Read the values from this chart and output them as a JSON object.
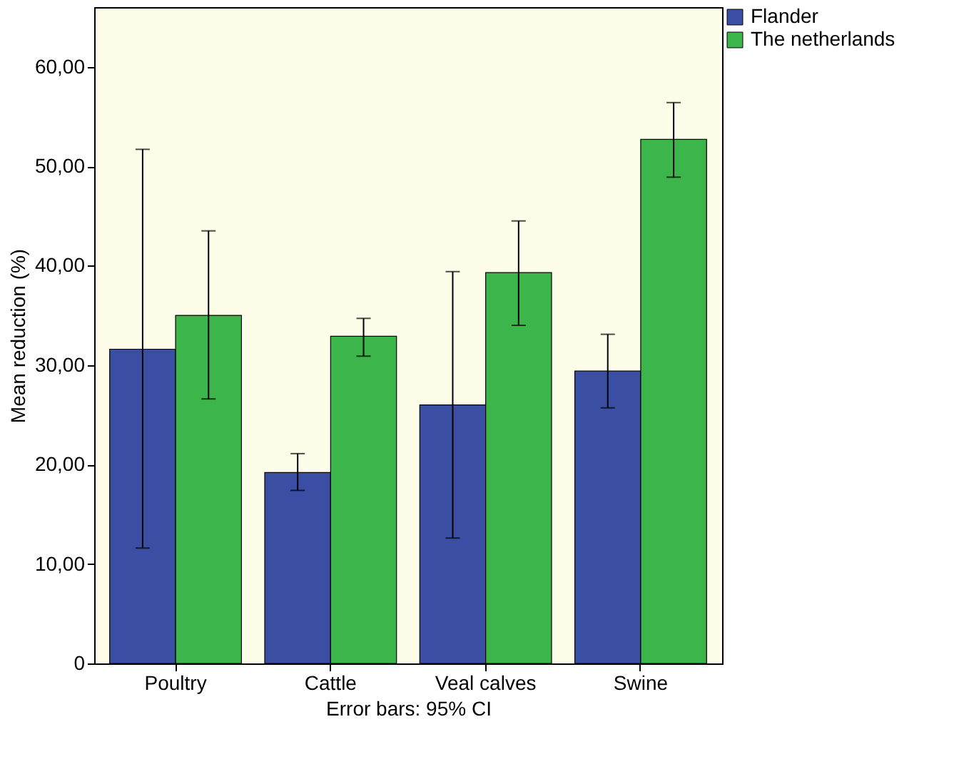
{
  "chart_data": {
    "type": "bar",
    "ylabel": "Mean reduction (%)",
    "xlabel": "Error bars: 95% CI",
    "categories": [
      "Poultry",
      "Cattle",
      "Veal calves",
      "Swine"
    ],
    "series": [
      {
        "name": "Flander",
        "color": "#3a4fa3",
        "values": [
          31.6,
          19.2,
          26.0,
          29.4
        ],
        "errors": [
          [
            11.6,
            51.7
          ],
          [
            17.4,
            21.1
          ],
          [
            12.6,
            39.4
          ],
          [
            25.7,
            33.1
          ]
        ]
      },
      {
        "name": "The netherlands",
        "color": "#3cb54a",
        "values": [
          35.0,
          32.9,
          39.3,
          52.7
        ],
        "errors": [
          [
            26.6,
            43.5
          ],
          [
            30.9,
            34.7
          ],
          [
            34.0,
            44.5
          ],
          [
            48.9,
            56.4
          ]
        ]
      }
    ],
    "ylim": [
      0,
      66
    ],
    "yticks": [
      {
        "value": 0,
        "label": "0"
      },
      {
        "value": 10,
        "label": "10,00"
      },
      {
        "value": 20,
        "label": "20,00"
      },
      {
        "value": 30,
        "label": "30,00"
      },
      {
        "value": 40,
        "label": "40,00"
      },
      {
        "value": 50,
        "label": "50,00"
      },
      {
        "value": 60,
        "label": "60,00"
      }
    ],
    "grid": false,
    "legend": "top right"
  }
}
